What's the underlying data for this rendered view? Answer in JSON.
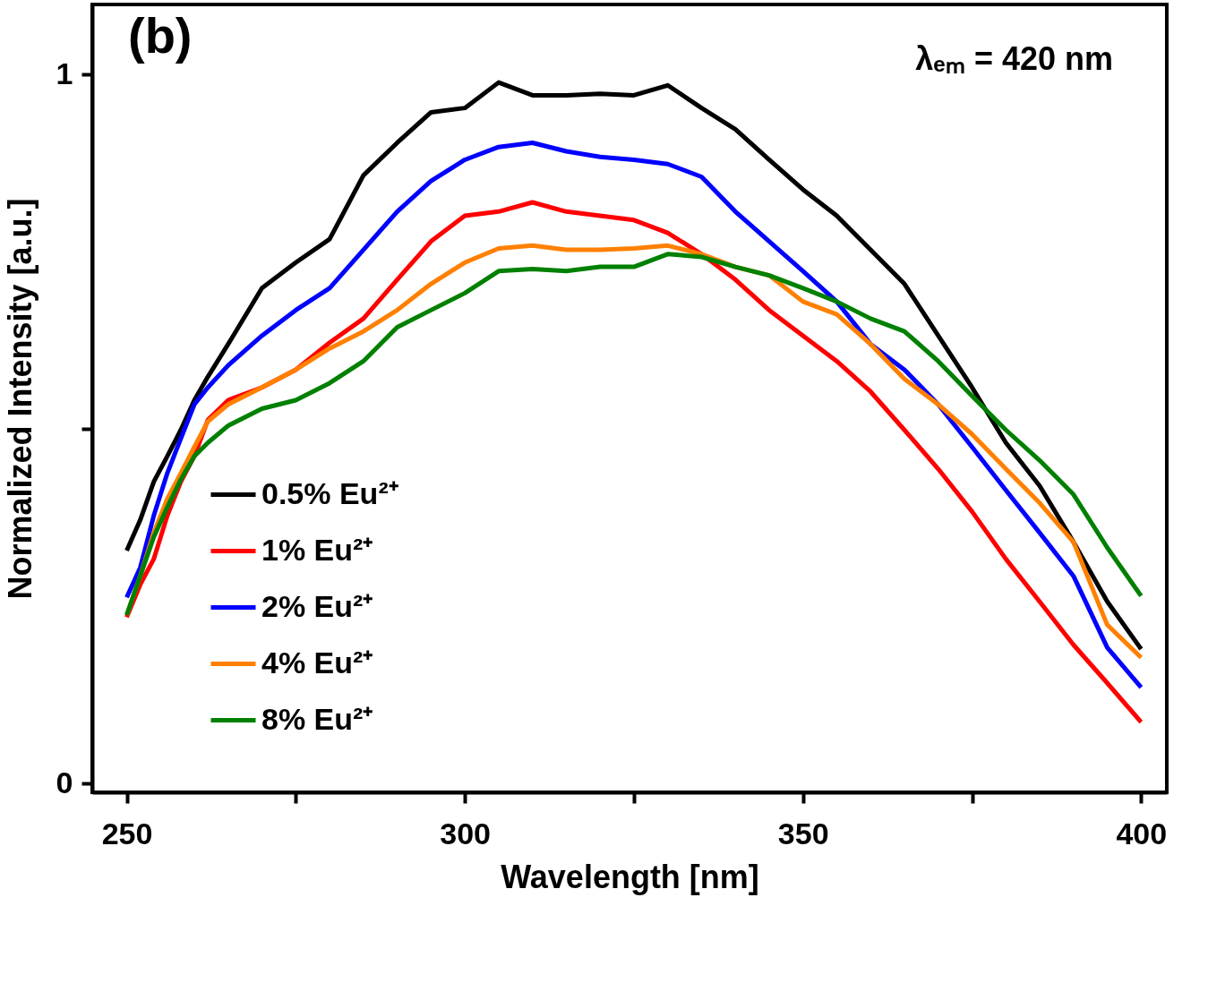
{
  "chart_data": {
    "type": "line",
    "xlabel": "Wavelength [nm]",
    "ylabel": "Normalized Intensity [a.u.]",
    "annotations": [
      "(b)",
      "λₑₘ = 420 nm"
    ],
    "x": [
      250,
      252,
      254,
      256,
      258,
      260,
      262,
      265,
      270,
      275,
      280,
      285,
      290,
      295,
      300,
      305,
      310,
      315,
      320,
      325,
      330,
      335,
      340,
      345,
      350,
      355,
      360,
      365,
      370,
      375,
      380,
      385,
      390,
      395,
      400
    ],
    "xlim": [
      244.9,
      403.8
    ],
    "xticks": [
      250,
      {
        "value": 275,
        "label": null
      },
      300,
      {
        "value": 325,
        "label": null
      },
      350,
      {
        "value": 375,
        "label": null
      },
      400
    ],
    "ylim": [
      -0.012,
      1.099
    ],
    "yticks": [
      0,
      {
        "value": 0.5,
        "label": null
      },
      1
    ],
    "grid": false,
    "legend": "bottom left",
    "line_style": "solid",
    "marker": "none",
    "series": [
      {
        "name": "0.5% Eu²⁺",
        "color": "#000000",
        "values": [
          0.329,
          0.372,
          0.426,
          0.462,
          0.499,
          0.541,
          0.574,
          0.62,
          0.699,
          0.735,
          0.768,
          0.858,
          0.904,
          0.947,
          0.953,
          0.989,
          0.971,
          0.971,
          0.973,
          0.971,
          0.985,
          0.953,
          0.923,
          0.88,
          0.838,
          0.801,
          0.753,
          0.705,
          0.632,
          0.559,
          0.481,
          0.42,
          0.341,
          0.257,
          0.19
        ]
      },
      {
        "name": "1% Eu²⁺",
        "color": "#ff0000",
        "values": [
          0.235,
          0.281,
          0.317,
          0.378,
          0.426,
          0.462,
          0.513,
          0.541,
          0.559,
          0.584,
          0.622,
          0.656,
          0.711,
          0.765,
          0.801,
          0.807,
          0.82,
          0.807,
          0.801,
          0.795,
          0.777,
          0.747,
          0.711,
          0.668,
          0.632,
          0.596,
          0.553,
          0.499,
          0.444,
          0.384,
          0.317,
          0.257,
          0.196,
          0.142,
          0.087
        ]
      },
      {
        "name": "2% Eu²⁺",
        "color": "#0000ff",
        "values": [
          0.263,
          0.305,
          0.378,
          0.438,
          0.487,
          0.535,
          0.559,
          0.59,
          0.632,
          0.668,
          0.699,
          0.753,
          0.807,
          0.85,
          0.88,
          0.898,
          0.904,
          0.892,
          0.884,
          0.88,
          0.874,
          0.856,
          0.807,
          0.765,
          0.723,
          0.68,
          0.62,
          0.584,
          0.535,
          0.475,
          0.414,
          0.354,
          0.293,
          0.192,
          0.136
        ]
      },
      {
        "name": "4% Eu²⁺",
        "color": "#ff8000",
        "values": [
          0.238,
          0.293,
          0.354,
          0.402,
          0.438,
          0.475,
          0.511,
          0.535,
          0.559,
          0.584,
          0.614,
          0.638,
          0.668,
          0.705,
          0.735,
          0.755,
          0.759,
          0.753,
          0.753,
          0.755,
          0.759,
          0.747,
          0.729,
          0.717,
          0.68,
          0.662,
          0.62,
          0.571,
          0.535,
          0.493,
          0.444,
          0.396,
          0.341,
          0.224,
          0.178
        ]
      },
      {
        "name": "8% Eu²⁺",
        "color": "#008000",
        "values": [
          0.238,
          0.293,
          0.348,
          0.39,
          0.429,
          0.462,
          0.481,
          0.505,
          0.529,
          0.541,
          0.565,
          0.596,
          0.644,
          0.668,
          0.692,
          0.723,
          0.726,
          0.723,
          0.729,
          0.729,
          0.747,
          0.743,
          0.729,
          0.717,
          0.699,
          0.68,
          0.656,
          0.638,
          0.596,
          0.547,
          0.499,
          0.456,
          0.408,
          0.333,
          0.265
        ]
      }
    ]
  }
}
